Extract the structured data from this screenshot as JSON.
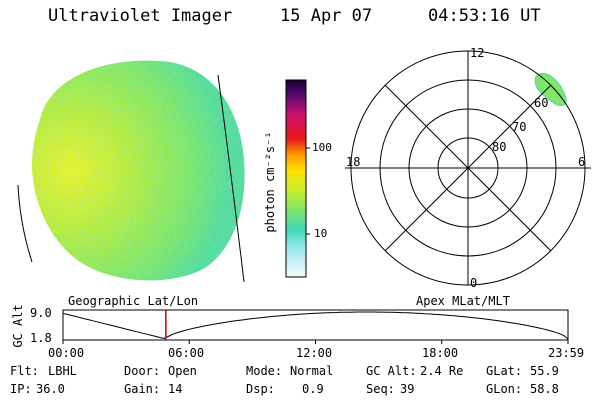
{
  "header": {
    "instrument": "Ultraviolet Imager",
    "date": "15 Apr 07",
    "time": "04:53:16 UT"
  },
  "colorbar": {
    "label": "photon cm⁻²s⁻¹",
    "ticks": [
      "100",
      "10"
    ]
  },
  "polar": {
    "mlt_labels": {
      "top": "12",
      "left": "18",
      "right": "6",
      "bottom": "0"
    },
    "lat_labels": [
      "60",
      "70",
      "80"
    ]
  },
  "timeline": {
    "left_title": "Geographic Lat/Lon",
    "right_title": "Apex MLat/MLT",
    "ylabel": "GC Alt",
    "ymax": "9.0",
    "ymin": "1.8",
    "ticks": [
      "00:00",
      "06:00",
      "12:00",
      "18:00",
      "23:59"
    ],
    "marker_time_hours": 4.887
  },
  "info": {
    "flt_label": "Flt:",
    "flt_value": "LBHL",
    "ip_label": "IP:",
    "ip_value": "36.0",
    "door_label": "Door:",
    "door_value": "Open",
    "gain_label": "Gain:",
    "gain_value": "14",
    "mode_label": "Mode:",
    "mode_value": "Normal",
    "dsp_label": "Dsp:",
    "dsp_value": "0.9",
    "gcalt_label": "GC Alt:",
    "gcalt_value": "2.4 Re",
    "seq_label": "Seq:",
    "seq_value": "39",
    "glat_label": "GLat:",
    "glat_value": "55.9",
    "glon_label": "GLon:",
    "glon_value": "58.8"
  }
}
